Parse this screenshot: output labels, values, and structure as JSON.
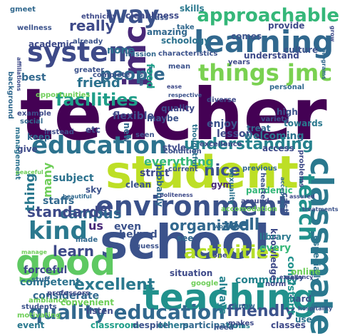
{
  "words": [
    {
      "text": "teacher",
      "color": "#440154"
    },
    {
      "text": "student",
      "color": "#bddf26"
    },
    {
      "text": "school",
      "color": "#3b528b"
    },
    {
      "text": "good",
      "color": "#5ec962"
    },
    {
      "text": "teaching",
      "color": "#21918c"
    },
    {
      "text": "classmate",
      "color": "#2a788e"
    },
    {
      "text": "environment",
      "color": "#3b528b"
    },
    {
      "text": "learning",
      "color": "#31688e"
    },
    {
      "text": "system",
      "color": "#3e4a89"
    },
    {
      "text": "education",
      "color": "#2c728e"
    },
    {
      "text": "jmc",
      "color": "#482878"
    },
    {
      "text": "quality education",
      "color": "#31688e"
    },
    {
      "text": "things jmc",
      "color": "#7ad151"
    },
    {
      "text": "approachable",
      "color": "#35b779"
    },
    {
      "text": "kind",
      "color": "#2a788e"
    },
    {
      "text": "way",
      "color": "#3b528b"
    },
    {
      "text": "really",
      "color": "#3e4a89"
    },
    {
      "text": "facilities",
      "color": "#1f9e89"
    },
    {
      "text": "people",
      "color": "#31688e"
    },
    {
      "text": "understanding",
      "color": "#26828e"
    },
    {
      "text": "teach",
      "color": "#21918c"
    },
    {
      "text": "activities",
      "color": "#b5de2b"
    },
    {
      "text": "friendly",
      "color": "#3b528b"
    },
    {
      "text": "excellent",
      "color": "#2a788e"
    },
    {
      "text": "campus",
      "color": "#31688e"
    },
    {
      "text": "standard",
      "color": "#3e4a89"
    },
    {
      "text": "organized",
      "color": "#31688e"
    },
    {
      "text": "nice",
      "color": "#3b528b"
    },
    {
      "text": "learn",
      "color": "#3e4a89"
    },
    {
      "text": "well",
      "color": "#31688e"
    },
    {
      "text": "friend",
      "color": "#2c728e"
    },
    {
      "text": "everything",
      "color": "#35b779"
    },
    {
      "text": "thing",
      "color": "#2a788e"
    },
    {
      "text": "many",
      "color": "#6ece58"
    },
    {
      "text": "community",
      "color": "#26828e"
    },
    {
      "text": "us",
      "color": "#482878"
    },
    {
      "text": "lot",
      "color": "#3e4a89"
    },
    {
      "text": "classroom",
      "color": "#1f9e89"
    },
    {
      "text": "despite",
      "color": "#3b528b"
    },
    {
      "text": "others",
      "color": "#2a788e"
    },
    {
      "text": "participation",
      "color": "#31688e"
    },
    {
      "text": "terms",
      "color": "#26828e"
    },
    {
      "text": "classes",
      "color": "#3e4a89"
    },
    {
      "text": "use",
      "color": "#2c728e"
    },
    {
      "text": "hard",
      "color": "#3b528b"
    },
    {
      "text": "consistent",
      "color": "#21918c"
    },
    {
      "text": "knowledge",
      "color": "#3e4a89"
    },
    {
      "text": "especially",
      "color": "#2c728e"
    },
    {
      "text": "cast",
      "color": "#3b528b"
    },
    {
      "text": "every",
      "color": "#35b779"
    },
    {
      "text": "library",
      "color": "#2a788e"
    },
    {
      "text": "online",
      "color": "#6ece58"
    },
    {
      "text": "always",
      "color": "#26828e"
    },
    {
      "text": "situation",
      "color": "#3e4a89"
    },
    {
      "text": "google",
      "color": "#6ece58"
    },
    {
      "text": "helped",
      "color": "#3b528b"
    },
    {
      "text": "forceful",
      "color": "#3e4a89"
    },
    {
      "text": "competent",
      "color": "#2c728e"
    },
    {
      "text": "considerate",
      "color": "#31688e"
    },
    {
      "text": "convenient",
      "color": "#6ece58"
    },
    {
      "text": "listen",
      "color": "#3e4a89"
    },
    {
      "text": "event",
      "color": "#2a788e"
    },
    {
      "text": "motivating",
      "color": "#6ece58"
    },
    {
      "text": "staffs",
      "color": "#31688e"
    },
    {
      "text": "subject",
      "color": "#2c728e"
    },
    {
      "text": "sky",
      "color": "#3b528b"
    },
    {
      "text": "give",
      "color": "#3e4a89"
    },
    {
      "text": "keep",
      "color": "#31688e"
    },
    {
      "text": "flexible",
      "color": "#3e4a89"
    },
    {
      "text": "enjoy",
      "color": "#3b528b"
    },
    {
      "text": "lesson",
      "color": "#3e4a89"
    },
    {
      "text": "gym",
      "color": "#482878"
    },
    {
      "text": "pandemic",
      "color": "#35b779"
    },
    {
      "text": "strict",
      "color": "#3e4a89"
    },
    {
      "text": "clean",
      "color": "#3b528b"
    },
    {
      "text": "welcoming",
      "color": "#2c728e"
    },
    {
      "text": "access",
      "color": "#3e4a89"
    },
    {
      "text": "treat",
      "color": "#31688e"
    },
    {
      "text": "high",
      "color": "#3b528b"
    },
    {
      "text": "towards",
      "color": "#2a788e"
    },
    {
      "text": "style",
      "color": "#3e4a89"
    },
    {
      "text": "probably",
      "color": "#31688e"
    },
    {
      "text": "maybe",
      "color": "#3b528b"
    },
    {
      "text": "quality",
      "color": "#3e4a89"
    },
    {
      "text": "best",
      "color": "#31688e"
    },
    {
      "text": "etc",
      "color": "#3e4a89"
    },
    {
      "text": "none",
      "color": "#2c728e"
    },
    {
      "text": "food",
      "color": "#1f9e89"
    },
    {
      "text": "mission",
      "color": "#31688e"
    },
    {
      "text": "complete",
      "color": "#3b528b"
    },
    {
      "text": "understand",
      "color": "#3e4a89"
    },
    {
      "text": "comes",
      "color": "#3b528b"
    },
    {
      "text": "provide",
      "color": "#3e4a89"
    },
    {
      "text": "culture",
      "color": "#3b528b"
    },
    {
      "text": "amazing",
      "color": "#31688e"
    },
    {
      "text": "schoology",
      "color": "#2c728e"
    },
    {
      "text": "skills",
      "color": "#2a788e"
    },
    {
      "text": "cleanliness",
      "color": "#3e4a89"
    },
    {
      "text": "class",
      "color": "#3b528b"
    },
    {
      "text": "take",
      "color": "#31688e"
    },
    {
      "text": "academic",
      "color": "#3e4a89"
    },
    {
      "text": "characteristics",
      "color": "#3b528b"
    },
    {
      "text": "years",
      "color": "#3e4a89"
    },
    {
      "text": "variety",
      "color": "#3b528b"
    },
    {
      "text": "diverse",
      "color": "#3e4a89"
    },
    {
      "text": "thoughtful",
      "color": "#2c728e"
    },
    {
      "text": "seen",
      "color": "#3b528b"
    },
    {
      "text": "new",
      "color": "#31688e"
    },
    {
      "text": "excellence",
      "color": "#3e4a89"
    },
    {
      "text": "condition",
      "color": "#3b528b"
    },
    {
      "text": "previous",
      "color": "#31688e"
    },
    {
      "text": "accomodation",
      "color": "#6ece58"
    },
    {
      "text": "around",
      "color": "#3e4a89"
    },
    {
      "text": "even",
      "color": "#3b528b"
    },
    {
      "text": "see",
      "color": "#31688e"
    },
    {
      "text": "one",
      "color": "#3e4a89"
    },
    {
      "text": "guess",
      "color": "#3b528b"
    },
    {
      "text": "made",
      "color": "#31688e"
    },
    {
      "text": "norm",
      "color": "#3e4a89"
    },
    {
      "text": "easy",
      "color": "#3b528b"
    },
    {
      "text": "know",
      "color": "#31688e"
    },
    {
      "text": "makes",
      "color": "#3e4a89"
    },
    {
      "text": "need",
      "color": "#3b528b"
    },
    {
      "text": "stuff",
      "color": "#31688e"
    },
    {
      "text": "professors",
      "color": "#3e4a89"
    },
    {
      "text": "students",
      "color": "#3b528b"
    },
    {
      "text": "ambiance",
      "color": "#6ece58"
    },
    {
      "text": "social",
      "color": "#31688e"
    },
    {
      "text": "example",
      "color": "#3e4a89"
    },
    {
      "text": "management",
      "color": "#2c728e"
    },
    {
      "text": "wellness",
      "color": "#3b528b"
    },
    {
      "text": "affiliations",
      "color": "#3e4a89"
    },
    {
      "text": "background",
      "color": "#31688e"
    },
    {
      "text": "opportunities",
      "color": "#6ece58"
    },
    {
      "text": "greater",
      "color": "#3b528b"
    },
    {
      "text": "instead",
      "color": "#3e4a89"
    },
    {
      "text": "atm",
      "color": "#31688e"
    },
    {
      "text": "mean",
      "color": "#3b528b"
    },
    {
      "text": "ease",
      "color": "#3e4a89"
    },
    {
      "text": "personal",
      "color": "#31688e"
    },
    {
      "text": "sexuality",
      "color": "#2c728e"
    },
    {
      "text": "problems",
      "color": "#3e4a89"
    },
    {
      "text": "hearted",
      "color": "#3b528b"
    },
    {
      "text": "accepting",
      "color": "#31688e"
    },
    {
      "text": "assured",
      "color": "#3e4a89"
    },
    {
      "text": "treatments",
      "color": "#3b528b"
    },
    {
      "text": "beautiful",
      "color": "#31688e"
    },
    {
      "text": "peaceful",
      "color": "#6ece58"
    },
    {
      "text": "politeness",
      "color": "#3e4a89"
    },
    {
      "text": "current",
      "color": "#3b528b"
    },
    {
      "text": "working",
      "color": "#31688e"
    },
    {
      "text": "excellency",
      "color": "#3e4a89"
    },
    {
      "text": "hospitality",
      "color": "#3b528b"
    },
    {
      "text": "gmeet",
      "color": "#31688e"
    },
    {
      "text": "ethnicity",
      "color": "#3e4a89"
    },
    {
      "text": "already",
      "color": "#3b528b"
    },
    {
      "text": "programs",
      "color": "#31688e"
    },
    {
      "text": "grow",
      "color": "#3e4a89"
    },
    {
      "text": "manage",
      "color": "#6ece58"
    },
    {
      "text": "respective",
      "color": "#3b528b"
    }
  ]
}
